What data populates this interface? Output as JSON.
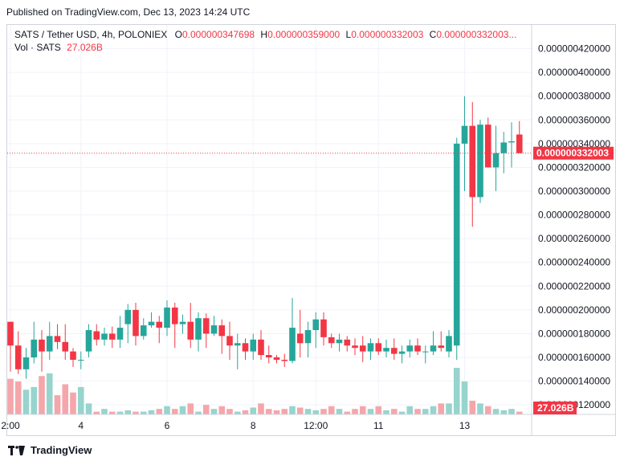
{
  "header": {
    "published_text": "Published on TradingView.com, Dec 13, 2023 14:24 UTC"
  },
  "legend": {
    "symbol": "SATS / Tether USD, 4h, POLONIEX",
    "open_label": "O",
    "open": "0.000000347698",
    "high_label": "H",
    "high": "0.000000359000",
    "low_label": "L",
    "low": "0.000000332003",
    "close_label": "C",
    "close": "0.000000332003...",
    "volume_label": "Vol · SATS",
    "volume": "27.026B"
  },
  "footer": {
    "brand": "TradingView"
  },
  "colors": {
    "up": "#26a69a",
    "down": "#f23645",
    "vol_up": "#97d4cd",
    "vol_down": "#f5a6ab",
    "grid": "#f0f3fa",
    "axis_text": "#131722"
  },
  "chart_data": {
    "type": "candlestick",
    "unit_scale_note": "prices in units of 1e-9 USDT",
    "y_ticks": [
      "0.000000420000",
      "0.000000400000",
      "0.000000380000",
      "0.000000360000",
      "0.000000340000",
      "0.000000320000",
      "0.000000300000",
      "0.000000280000",
      "0.000000260000",
      "0.000000240000",
      "0.000000220000",
      "0.000000200000",
      "0.000000180000",
      "0.000000160000",
      "0.000000140000",
      "0.000000120000"
    ],
    "y_tick_values": [
      420,
      400,
      380,
      360,
      340,
      320,
      300,
      280,
      260,
      240,
      220,
      200,
      180,
      160,
      140,
      120
    ],
    "ylim": [
      112,
      440
    ],
    "x_labels": [
      {
        "label": "2:00",
        "index": 0
      },
      {
        "label": "4",
        "index": 9
      },
      {
        "label": "6",
        "index": 20
      },
      {
        "label": "8",
        "index": 31
      },
      {
        "label": "12:00",
        "index": 39
      },
      {
        "label": "11",
        "index": 47
      },
      {
        "label": "13",
        "index": 58
      }
    ],
    "last_price_label": "0.000000332003",
    "last_price": 332,
    "volume_label": "27.026B",
    "candles": [
      [
        190,
        170,
        190,
        148,
        1.3
      ],
      [
        170,
        150,
        182,
        146,
        1.2
      ],
      [
        150,
        160,
        168,
        142,
        0.9
      ],
      [
        160,
        175,
        190,
        155,
        1.0
      ],
      [
        175,
        165,
        183,
        148,
        1.4
      ],
      [
        165,
        178,
        190,
        158,
        1.5
      ],
      [
        178,
        173,
        188,
        167,
        0.7
      ],
      [
        173,
        165,
        188,
        158,
        1.1
      ],
      [
        165,
        158,
        168,
        152,
        0.8
      ],
      [
        158,
        158,
        165,
        150,
        1.0
      ],
      [
        165,
        183,
        188,
        160,
        0.4
      ],
      [
        182,
        175,
        188,
        170,
        0.1
      ],
      [
        175,
        180,
        185,
        170,
        0.2
      ],
      [
        180,
        175,
        186,
        168,
        0.1
      ],
      [
        175,
        185,
        195,
        168,
        0.1
      ],
      [
        188,
        200,
        205,
        172,
        0.15
      ],
      [
        200,
        178,
        206,
        170,
        0.1
      ],
      [
        178,
        187,
        193,
        175,
        0.1
      ],
      [
        187,
        190,
        198,
        185,
        0.15
      ],
      [
        190,
        185,
        195,
        172,
        0.2
      ],
      [
        185,
        202,
        208,
        178,
        0.3
      ],
      [
        202,
        188,
        206,
        168,
        0.2
      ],
      [
        188,
        190,
        196,
        180,
        0.3
      ],
      [
        190,
        175,
        206,
        168,
        0.4
      ],
      [
        175,
        193,
        198,
        165,
        0.1
      ],
      [
        193,
        180,
        197,
        168,
        0.35
      ],
      [
        180,
        187,
        195,
        178,
        0.2
      ],
      [
        187,
        178,
        192,
        163,
        0.3
      ],
      [
        178,
        170,
        190,
        158,
        0.2
      ],
      [
        170,
        172,
        180,
        150,
        0.1
      ],
      [
        172,
        165,
        176,
        158,
        0.15
      ],
      [
        165,
        175,
        180,
        158,
        0.25
      ],
      [
        175,
        162,
        183,
        158,
        0.4
      ],
      [
        162,
        160,
        170,
        155,
        0.2
      ],
      [
        160,
        158,
        162,
        155,
        0.15
      ],
      [
        158,
        157,
        163,
        152,
        0.2
      ],
      [
        157,
        185,
        210,
        155,
        0.3
      ],
      [
        180,
        172,
        200,
        160,
        0.25
      ],
      [
        172,
        183,
        190,
        160,
        0.2
      ],
      [
        183,
        192,
        198,
        168,
        0.15
      ],
      [
        192,
        177,
        198,
        170,
        0.2
      ],
      [
        177,
        172,
        180,
        168,
        0.3
      ],
      [
        172,
        175,
        180,
        165,
        0.2
      ],
      [
        175,
        170,
        178,
        165,
        0.1
      ],
      [
        170,
        168,
        176,
        162,
        0.2
      ],
      [
        170,
        165,
        178,
        156,
        0.3
      ],
      [
        165,
        172,
        176,
        158,
        0.2
      ],
      [
        172,
        165,
        176,
        162,
        0.3
      ],
      [
        165,
        168,
        175,
        160,
        0.15
      ],
      [
        168,
        163,
        176,
        158,
        0.2
      ],
      [
        163,
        165,
        170,
        155,
        0.1
      ],
      [
        165,
        170,
        175,
        160,
        0.3
      ],
      [
        170,
        165,
        176,
        162,
        0.2
      ],
      [
        165,
        165,
        170,
        155,
        0.2
      ],
      [
        165,
        170,
        182,
        162,
        0.3
      ],
      [
        170,
        168,
        182,
        165,
        0.4
      ],
      [
        165,
        178,
        183,
        160,
        0.4
      ],
      [
        170,
        340,
        345,
        158,
        1.7
      ],
      [
        340,
        355,
        380,
        300,
        1.2
      ],
      [
        355,
        295,
        375,
        270,
        0.5
      ],
      [
        295,
        356,
        360,
        290,
        0.4
      ],
      [
        356,
        320,
        362,
        320,
        0.3
      ],
      [
        320,
        332,
        355,
        300,
        0.2
      ],
      [
        332,
        341,
        350,
        315,
        0.15
      ],
      [
        341,
        342,
        358,
        320,
        0.2
      ],
      [
        347.698,
        332.003,
        359,
        332.003,
        0.1
      ]
    ]
  }
}
